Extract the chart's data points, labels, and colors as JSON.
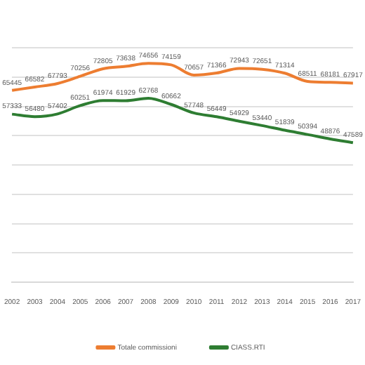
{
  "chart_data": {
    "type": "line",
    "categories": [
      "2002",
      "2003",
      "2004",
      "2005",
      "2006",
      "2007",
      "2008",
      "2009",
      "2010",
      "2011",
      "2012",
      "2013",
      "2014",
      "2015",
      "2016",
      "2017"
    ],
    "series": [
      {
        "name": "Totale commissioni",
        "color": "#ed7d31",
        "values": [
          65445,
          66582,
          67793,
          70256,
          72805,
          73638,
          74656,
          74159,
          70657,
          71366,
          72943,
          72651,
          71314,
          68511,
          68181,
          67917
        ]
      },
      {
        "name": "CIASS.RTI",
        "color": "#2e7d32",
        "values": [
          57333,
          56480,
          57402,
          60251,
          61974,
          61929,
          62768,
          60662,
          57748,
          56449,
          54929,
          53440,
          51839,
          50394,
          48876,
          47589
        ]
      }
    ],
    "ylim": [
      0,
      80000
    ],
    "yticks": [
      {
        "value": 0,
        "label": null
      },
      {
        "value": 10000,
        "label": null
      },
      {
        "value": 20000,
        "label": null
      },
      {
        "value": 30000,
        "label": null
      },
      {
        "value": 40000,
        "label": null
      },
      {
        "value": 50000,
        "label": null
      },
      {
        "value": 60000,
        "label": null
      },
      {
        "value": 70000,
        "label": null
      },
      {
        "value": 80000,
        "label": null
      }
    ],
    "tick_labels": "x",
    "grid": "y",
    "legend": "bottom",
    "data_labels": true,
    "marker": "none"
  }
}
